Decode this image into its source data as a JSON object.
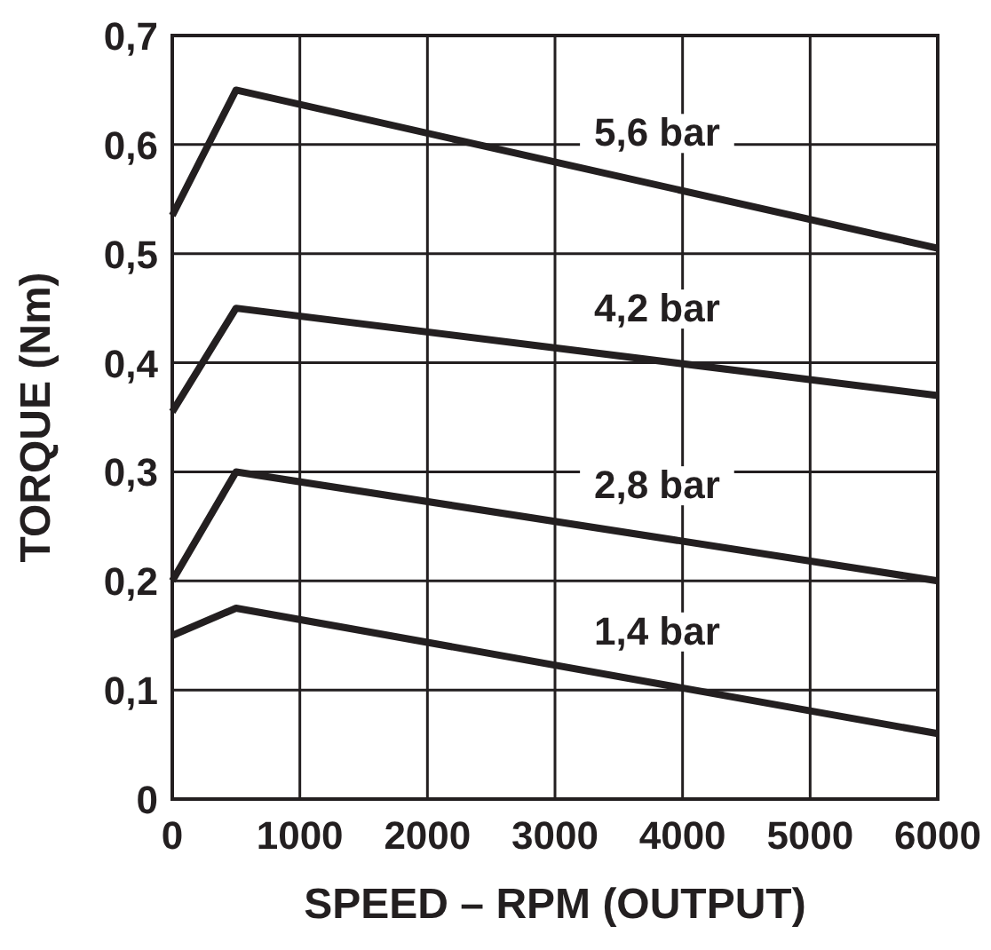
{
  "chart_data": {
    "type": "line",
    "xlabel": "SPEED – RPM (OUTPUT)",
    "ylabel": "TORQUE (Nm)",
    "xlim": [
      0,
      6000
    ],
    "ylim": [
      0,
      0.7
    ],
    "xticks": [
      0,
      1000,
      2000,
      3000,
      4000,
      5000,
      6000
    ],
    "yticks": [
      {
        "value": 0,
        "label": "0"
      },
      {
        "value": 0.1,
        "label": "0,1"
      },
      {
        "value": 0.2,
        "label": "0,2"
      },
      {
        "value": 0.3,
        "label": "0,3"
      },
      {
        "value": 0.4,
        "label": "0,4"
      },
      {
        "value": 0.5,
        "label": "0,5"
      },
      {
        "value": 0.6,
        "label": "0,6"
      },
      {
        "value": 0.7,
        "label": "0,7"
      }
    ],
    "grid": true,
    "marker": "none",
    "line_style": "solid",
    "series": [
      {
        "name": "5,6 bar",
        "color": "#231f20",
        "x": [
          0,
          500,
          6000
        ],
        "values": [
          0.535,
          0.65,
          0.505
        ]
      },
      {
        "name": "4,2 bar",
        "color": "#231f20",
        "x": [
          0,
          500,
          6000
        ],
        "values": [
          0.355,
          0.45,
          0.37
        ]
      },
      {
        "name": "2,8 bar",
        "color": "#231f20",
        "x": [
          0,
          500,
          6000
        ],
        "values": [
          0.2,
          0.3,
          0.2
        ]
      },
      {
        "name": "1,4 bar",
        "color": "#231f20",
        "x": [
          0,
          500,
          6000
        ],
        "values": [
          0.15,
          0.175,
          0.06
        ]
      }
    ]
  }
}
